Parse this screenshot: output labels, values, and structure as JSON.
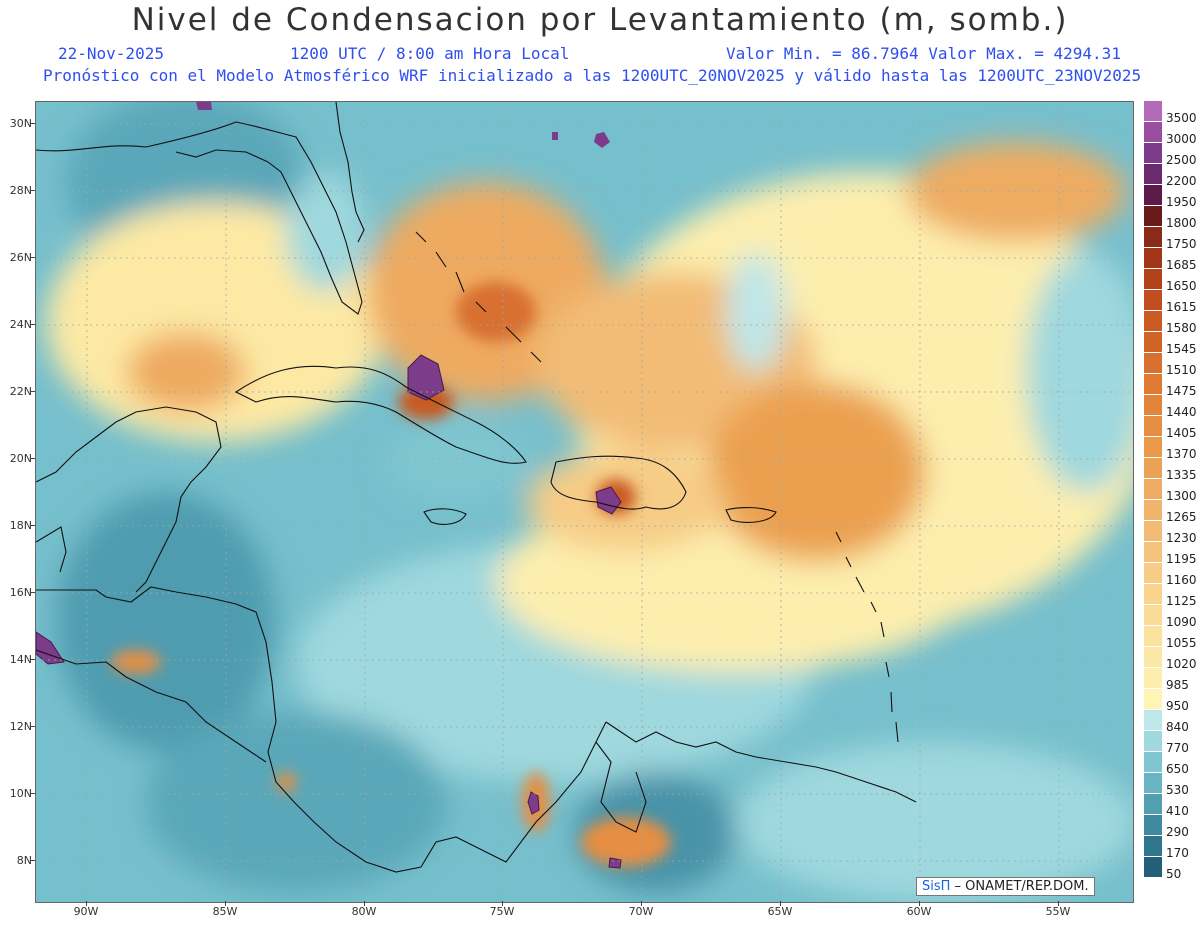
{
  "title": "Nivel de Condensacion por Levantamiento (m, somb.)",
  "header": {
    "date": "22-Nov-2025",
    "utc": "1200 UTC / 8:00 am Hora Local",
    "value_range": "Valor Min. = 86.7964  Valor Max. = 4294.31",
    "model_info": "Pronóstico con el Modelo Atmosférico WRF inicializado a las 1200UTC_20NOV2025 y válido hasta las  1200UTC_23NOV2025"
  },
  "map": {
    "lat_labels": [
      "30N",
      "28N",
      "26N",
      "24N",
      "22N",
      "20N",
      "18N",
      "16N",
      "14N",
      "12N",
      "10N",
      "8N"
    ],
    "lon_labels": [
      "90W",
      "85W",
      "80W",
      "75W",
      "70W",
      "65W",
      "60W",
      "55W"
    ]
  },
  "colorbar": {
    "levels": [
      "3500",
      "3000",
      "2500",
      "2200",
      "1950",
      "1800",
      "1750",
      "1685",
      "1650",
      "1615",
      "1580",
      "1545",
      "1510",
      "1475",
      "1440",
      "1405",
      "1370",
      "1335",
      "1300",
      "1265",
      "1230",
      "1195",
      "1160",
      "1125",
      "1090",
      "1055",
      "1020",
      "985",
      "950",
      "840",
      "770",
      "650",
      "530",
      "410",
      "290",
      "170",
      "50"
    ],
    "colors": [
      "#b36bb8",
      "#9a4e9f",
      "#7d3c8a",
      "#6a2a6e",
      "#5a1a4a",
      "#6b1a1a",
      "#8a2a18",
      "#a23618",
      "#b2421c",
      "#c04e20",
      "#c85a22",
      "#d06426",
      "#d87030",
      "#de7a34",
      "#e2843a",
      "#e68e42",
      "#ea984a",
      "#eca256",
      "#eeac62",
      "#f0b46c",
      "#f2bc76",
      "#f4c47e",
      "#f6cc86",
      "#f8d48e",
      "#fadc96",
      "#fbe29e",
      "#fce8a6",
      "#fdeeae",
      "#fef4b4",
      "#bfe6e8",
      "#9fd8de",
      "#7fc6d0",
      "#68b4c2",
      "#529fb0",
      "#3f8a9e",
      "#2f768c",
      "#235f76"
    ]
  },
  "credit": {
    "brand": "SisΠ",
    "text": " – ONAMET/REP.DOM."
  }
}
